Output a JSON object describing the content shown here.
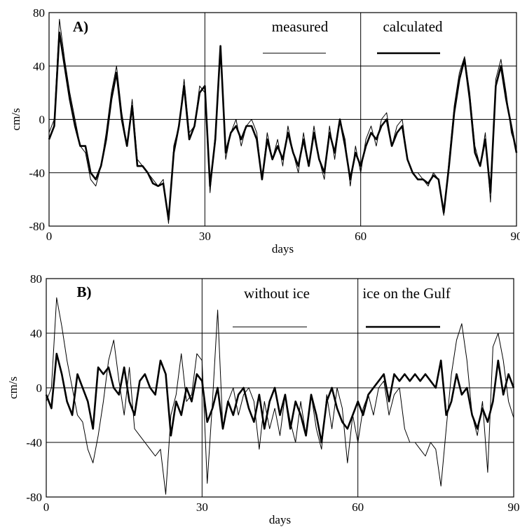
{
  "chart_data": [
    {
      "type": "line",
      "panel_label": "A)",
      "ylabel": "cm/s",
      "xlabel": "days",
      "xlim": [
        0,
        90
      ],
      "ylim": [
        -80,
        80
      ],
      "xticks": [
        0,
        30,
        60,
        90
      ],
      "yticks": [
        -80,
        -40,
        0,
        40,
        80
      ],
      "grid": true,
      "x": [
        0,
        1,
        2,
        3,
        4,
        5,
        6,
        7,
        8,
        9,
        10,
        11,
        12,
        13,
        14,
        15,
        16,
        17,
        18,
        19,
        20,
        21,
        22,
        23,
        24,
        25,
        26,
        27,
        28,
        29,
        30,
        31,
        32,
        33,
        34,
        35,
        36,
        37,
        38,
        39,
        40,
        41,
        42,
        43,
        44,
        45,
        46,
        47,
        48,
        49,
        50,
        51,
        52,
        53,
        54,
        55,
        56,
        57,
        58,
        59,
        60,
        61,
        62,
        63,
        64,
        65,
        66,
        67,
        68,
        69,
        70,
        71,
        72,
        73,
        74,
        75,
        76,
        77,
        78,
        79,
        80,
        81,
        82,
        83,
        84,
        85,
        86,
        87,
        88,
        89,
        90
      ],
      "series": [
        {
          "name": "measured",
          "color": "#000000",
          "linewidth": 1,
          "values": [
            -10,
            0,
            75,
            45,
            20,
            0,
            -20,
            -25,
            -45,
            -50,
            -35,
            -10,
            20,
            40,
            5,
            -20,
            15,
            -30,
            -35,
            -40,
            -45,
            -50,
            -45,
            -78,
            -20,
            -5,
            30,
            -10,
            -5,
            25,
            20,
            -55,
            -10,
            55,
            -30,
            -10,
            0,
            -20,
            -5,
            0,
            -10,
            -45,
            -10,
            -30,
            -15,
            -35,
            -5,
            -25,
            -40,
            -10,
            -35,
            -5,
            -30,
            -45,
            -5,
            -30,
            0,
            -15,
            -50,
            -20,
            -40,
            -15,
            -5,
            -20,
            0,
            5,
            -20,
            -5,
            0,
            -30,
            -40,
            -40,
            -45,
            -50,
            -40,
            -45,
            -72,
            -30,
            10,
            35,
            47,
            20,
            -20,
            -35,
            -10,
            -62,
            30,
            45,
            20,
            -10,
            -22
          ]
        },
        {
          "name": "calculated",
          "color": "#000000",
          "linewidth": 2.6,
          "values": [
            -15,
            -5,
            65,
            40,
            15,
            -5,
            -20,
            -20,
            -40,
            -45,
            -35,
            -15,
            15,
            35,
            0,
            -20,
            10,
            -35,
            -35,
            -40,
            -48,
            -50,
            -48,
            -75,
            -25,
            -5,
            25,
            -15,
            -5,
            20,
            25,
            -50,
            -15,
            55,
            -25,
            -10,
            -5,
            -15,
            -5,
            -5,
            -15,
            -45,
            -15,
            -30,
            -20,
            -30,
            -10,
            -25,
            -35,
            -15,
            -35,
            -10,
            -30,
            -40,
            -10,
            -25,
            0,
            -20,
            -45,
            -25,
            -35,
            -20,
            -10,
            -15,
            -5,
            0,
            -20,
            -10,
            -5,
            -30,
            -40,
            -45,
            -45,
            -48,
            -42,
            -45,
            -70,
            -35,
            5,
            30,
            45,
            15,
            -25,
            -35,
            -15,
            -55,
            25,
            40,
            15,
            -5,
            -25
          ]
        }
      ]
    },
    {
      "type": "line",
      "panel_label": "B)",
      "ylabel": "cm/s",
      "xlabel": "days",
      "xlim": [
        0,
        90
      ],
      "ylim": [
        -80,
        80
      ],
      "xticks": [
        0,
        30,
        60,
        90
      ],
      "yticks": [
        -80,
        -40,
        0,
        40,
        80
      ],
      "grid": true,
      "x": [
        0,
        1,
        2,
        3,
        4,
        5,
        6,
        7,
        8,
        9,
        10,
        11,
        12,
        13,
        14,
        15,
        16,
        17,
        18,
        19,
        20,
        21,
        22,
        23,
        24,
        25,
        26,
        27,
        28,
        29,
        30,
        31,
        32,
        33,
        34,
        35,
        36,
        37,
        38,
        39,
        40,
        41,
        42,
        43,
        44,
        45,
        46,
        47,
        48,
        49,
        50,
        51,
        52,
        53,
        54,
        55,
        56,
        57,
        58,
        59,
        60,
        61,
        62,
        63,
        64,
        65,
        66,
        67,
        68,
        69,
        70,
        71,
        72,
        73,
        74,
        75,
        76,
        77,
        78,
        79,
        80,
        81,
        82,
        83,
        84,
        85,
        86,
        87,
        88,
        89,
        90
      ],
      "series": [
        {
          "name": "without ice",
          "color": "#000000",
          "linewidth": 1,
          "values": [
            -10,
            0,
            66,
            45,
            20,
            0,
            -20,
            -25,
            -45,
            -55,
            -35,
            -10,
            20,
            35,
            5,
            -20,
            15,
            -30,
            -35,
            -40,
            -45,
            -50,
            -45,
            -78,
            -20,
            -5,
            25,
            -10,
            -5,
            25,
            20,
            -70,
            -10,
            57,
            -30,
            -10,
            0,
            -20,
            -5,
            0,
            -10,
            -45,
            -10,
            -30,
            -15,
            -35,
            -5,
            -25,
            -40,
            -10,
            -35,
            -5,
            -30,
            -45,
            -5,
            -30,
            0,
            -15,
            -55,
            -20,
            -40,
            -15,
            -5,
            -20,
            0,
            5,
            -20,
            -5,
            0,
            -30,
            -40,
            -40,
            -45,
            -50,
            -40,
            -45,
            -72,
            -30,
            10,
            35,
            47,
            20,
            -20,
            -35,
            -10,
            -62,
            30,
            40,
            20,
            -10,
            -22
          ]
        },
        {
          "name": "ice on the Gulf",
          "color": "#000000",
          "linewidth": 2.6,
          "values": [
            -5,
            -15,
            25,
            10,
            -10,
            -20,
            10,
            0,
            -10,
            -30,
            15,
            10,
            15,
            0,
            -5,
            15,
            -10,
            -20,
            5,
            10,
            0,
            -5,
            20,
            10,
            -35,
            -10,
            -20,
            0,
            -10,
            10,
            5,
            -25,
            -15,
            0,
            -30,
            -10,
            -20,
            -5,
            0,
            -15,
            -25,
            -5,
            -30,
            -10,
            0,
            -20,
            -5,
            -30,
            -10,
            -20,
            -35,
            -5,
            -20,
            -40,
            -10,
            0,
            -15,
            -25,
            -30,
            -20,
            -10,
            -20,
            -5,
            0,
            5,
            10,
            -10,
            10,
            5,
            10,
            5,
            10,
            5,
            10,
            5,
            0,
            20,
            -20,
            -10,
            10,
            -5,
            0,
            -20,
            -30,
            -15,
            -25,
            -10,
            20,
            -5,
            10,
            0
          ]
        }
      ]
    }
  ]
}
